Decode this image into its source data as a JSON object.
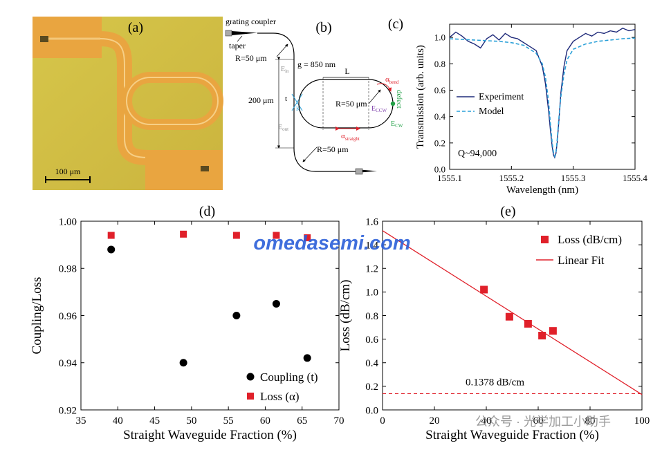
{
  "panels": {
    "a": {
      "label": "(a)",
      "scale_bar": "100 μm"
    },
    "b": {
      "label": "(b)",
      "grating_coupler": "grating coupler",
      "taper": "taper",
      "r_top": "R=50 μm",
      "gap": "g = 850 nm",
      "length": "L",
      "height": "200 μm",
      "t": "t",
      "kappa": "K",
      "r_ring": "R=50 μm",
      "e_in": "E",
      "e_in_sub": "in",
      "e_out": "E",
      "e_out_sub": "out",
      "e_ccw": "E",
      "e_ccw_sub": "CCW",
      "e_cw": "E",
      "e_cw_sub": "CW",
      "alpha_bend": "α",
      "alpha_bend_sub": "bend",
      "alpha_straight": "α",
      "alpha_straight_sub": "straight",
      "defect": "defect",
      "r_bottom": "R=50 μm"
    }
  },
  "watermark": {
    "site": "omedasemi.com",
    "wechat": "公众号 · 光学加工小助手"
  },
  "colors": {
    "experiment": "#1f2a7a",
    "model": "#2aa0d8",
    "red": "#e0202a",
    "black": "#000000",
    "green": "#22a046",
    "purple": "#7a3aa8"
  },
  "chart_data": [
    {
      "id": "c",
      "type": "line",
      "label": "(c)",
      "xlabel": "Wavelength (nm)",
      "ylabel": "Transmission (arb. units)",
      "xlim": [
        1555.1,
        1555.4
      ],
      "ylim": [
        0.0,
        1.1
      ],
      "xticks": [
        "1555.1",
        "1555.2",
        "1555.3",
        "1555.4"
      ],
      "yticks": [
        "0.0",
        "0.2",
        "0.4",
        "0.6",
        "0.8",
        "1.0"
      ],
      "annotation": "Q~94,000",
      "legend": "left-middle",
      "series": [
        {
          "name": "Experiment",
          "style": "solid",
          "x": [
            1555.1,
            1555.11,
            1555.12,
            1555.13,
            1555.14,
            1555.15,
            1555.16,
            1555.17,
            1555.18,
            1555.19,
            1555.2,
            1555.21,
            1555.22,
            1555.23,
            1555.24,
            1555.25,
            1555.255,
            1555.26,
            1555.263,
            1555.266,
            1555.268,
            1555.27,
            1555.272,
            1555.274,
            1555.277,
            1555.28,
            1555.285,
            1555.29,
            1555.3,
            1555.31,
            1555.32,
            1555.33,
            1555.34,
            1555.35,
            1555.36,
            1555.37,
            1555.38,
            1555.39,
            1555.4
          ],
          "y": [
            1.0,
            1.04,
            1.01,
            0.97,
            0.95,
            0.92,
            0.99,
            1.02,
            0.98,
            1.03,
            1.0,
            0.99,
            0.96,
            0.93,
            0.9,
            0.78,
            0.65,
            0.45,
            0.3,
            0.17,
            0.11,
            0.09,
            0.12,
            0.2,
            0.38,
            0.58,
            0.78,
            0.9,
            0.97,
            1.0,
            1.03,
            1.01,
            1.04,
            1.03,
            1.05,
            1.04,
            1.07,
            1.05,
            1.06
          ]
        },
        {
          "name": "Model",
          "style": "dashed",
          "x": [
            1555.1,
            1555.12,
            1555.14,
            1555.16,
            1555.18,
            1555.2,
            1555.22,
            1555.24,
            1555.25,
            1555.255,
            1555.26,
            1555.263,
            1555.266,
            1555.268,
            1555.27,
            1555.272,
            1555.274,
            1555.277,
            1555.28,
            1555.285,
            1555.29,
            1555.3,
            1555.32,
            1555.34,
            1555.36,
            1555.38,
            1555.4
          ],
          "y": [
            0.99,
            0.985,
            0.98,
            0.975,
            0.97,
            0.96,
            0.94,
            0.88,
            0.8,
            0.7,
            0.52,
            0.35,
            0.2,
            0.13,
            0.1,
            0.13,
            0.22,
            0.4,
            0.55,
            0.72,
            0.83,
            0.91,
            0.95,
            0.97,
            0.98,
            0.99,
            0.995
          ]
        }
      ]
    },
    {
      "id": "d",
      "type": "scatter",
      "label": "(d)",
      "xlabel": "Straight Waveguide Fraction (%)",
      "ylabel": "Coupling/Loss",
      "xlim": [
        35,
        70
      ],
      "ylim": [
        0.92,
        1.0
      ],
      "xticks": [
        "35",
        "40",
        "45",
        "50",
        "55",
        "60",
        "65",
        "70"
      ],
      "yticks": [
        "0.92",
        "0.94",
        "0.96",
        "0.98",
        "1.00"
      ],
      "legend": "bottom-right",
      "series": [
        {
          "name": "Coupling (t)",
          "marker": "circle",
          "x": [
            39.1,
            48.9,
            56.1,
            61.5,
            65.7
          ],
          "y": [
            0.988,
            0.94,
            0.96,
            0.965,
            0.942
          ]
        },
        {
          "name": "Loss (α)",
          "marker": "square",
          "x": [
            39.1,
            48.9,
            56.1,
            61.5,
            65.7
          ],
          "y": [
            0.994,
            0.9945,
            0.994,
            0.994,
            0.993
          ]
        }
      ]
    },
    {
      "id": "e",
      "type": "scatter",
      "label": "(e)",
      "xlabel": "Straight Waveguide Fraction (%)",
      "ylabel": "Loss (dB/cm)",
      "xlim": [
        0,
        100
      ],
      "ylim": [
        0.0,
        1.6
      ],
      "xticks": [
        "0",
        "20",
        "40",
        "60",
        "80",
        "100"
      ],
      "yticks": [
        "0.0",
        "0.2",
        "0.4",
        "0.6",
        "0.8",
        "1.0",
        "1.2",
        "1.4",
        "1.6"
      ],
      "legend": "top-right",
      "annotation": "0.1378 dB/cm",
      "reference_line": 0.1378,
      "series": [
        {
          "name": "Loss (dB/cm)",
          "marker": "square",
          "x": [
            39.1,
            48.9,
            56.1,
            61.5,
            65.7
          ],
          "y": [
            1.02,
            0.79,
            0.73,
            0.63,
            0.67
          ]
        },
        {
          "name": "Linear Fit",
          "style": "line",
          "x": [
            0,
            100
          ],
          "y": [
            1.52,
            0.13
          ]
        }
      ]
    }
  ]
}
